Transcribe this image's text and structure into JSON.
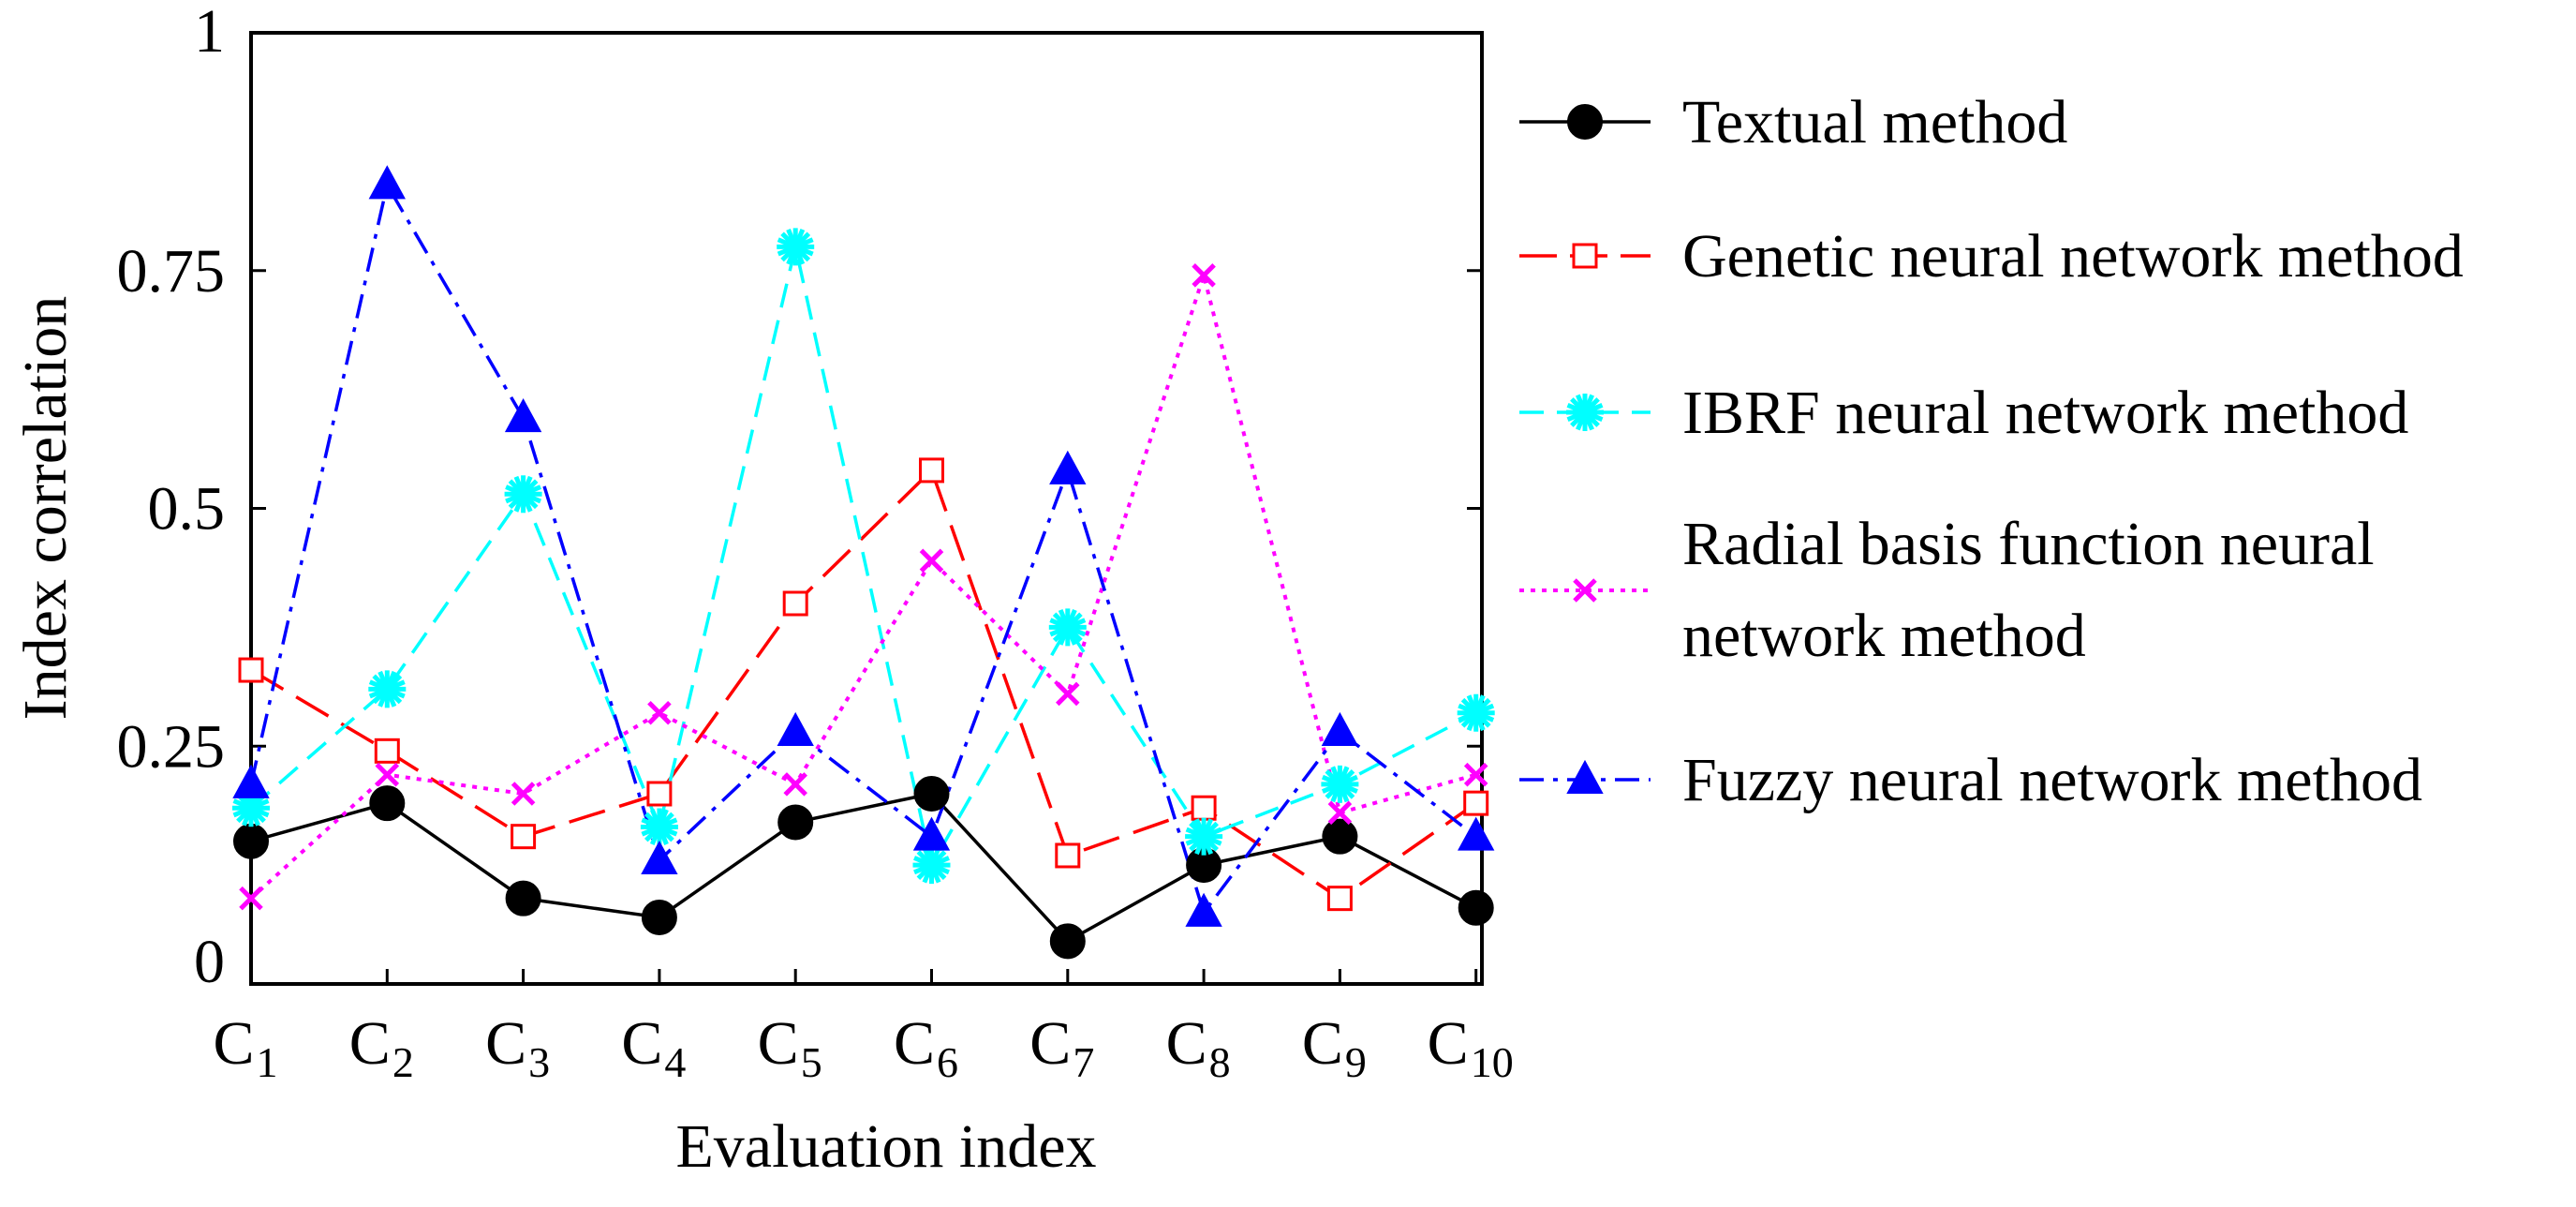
{
  "chart_data": {
    "type": "line",
    "title": "",
    "xlabel": "Evaluation index",
    "ylabel": "Index correlation",
    "ylim": [
      0,
      1
    ],
    "yticks": [
      "0",
      "0.25",
      "0.5",
      "0.75",
      "1"
    ],
    "categories": [
      {
        "base": "C",
        "sub": "1"
      },
      {
        "base": "C",
        "sub": "2"
      },
      {
        "base": "C",
        "sub": "3"
      },
      {
        "base": "C",
        "sub": "4"
      },
      {
        "base": "C",
        "sub": "5"
      },
      {
        "base": "C",
        "sub": "6"
      },
      {
        "base": "C",
        "sub": "7"
      },
      {
        "base": "C",
        "sub": "8"
      },
      {
        "base": "C",
        "sub": "9"
      },
      {
        "base": "C",
        "sub": "10"
      }
    ],
    "legend_position": "right",
    "series": [
      {
        "name": "Textual method",
        "color": "#000000",
        "dash": "solid",
        "marker": "filled-circle",
        "values": [
          0.15,
          0.19,
          0.09,
          0.07,
          0.17,
          0.2,
          0.045,
          0.125,
          0.155,
          0.08
        ]
      },
      {
        "name": "Genetic neural network method",
        "color": "#ff0000",
        "dash": "long-dash",
        "marker": "open-square",
        "values": [
          0.33,
          0.245,
          0.155,
          0.2,
          0.4,
          0.54,
          0.135,
          0.185,
          0.09,
          0.19
        ]
      },
      {
        "name": "IBRF neural network method",
        "color": "#00ffff",
        "dash": "dash",
        "marker": "asterisk",
        "values": [
          0.185,
          0.31,
          0.515,
          0.165,
          0.775,
          0.125,
          0.375,
          0.155,
          0.21,
          0.285
        ]
      },
      {
        "name": "Radial basis function neural network method",
        "color": "#ff00ff",
        "dash": "dot",
        "marker": "cross",
        "values": [
          0.09,
          0.22,
          0.2,
          0.285,
          0.21,
          0.445,
          0.305,
          0.745,
          0.18,
          0.22
        ]
      },
      {
        "name": "Fuzzy neural network method",
        "color": "#0000ff",
        "dash": "dash-dot",
        "marker": "filled-triangle",
        "values": [
          0.21,
          0.84,
          0.595,
          0.13,
          0.265,
          0.155,
          0.54,
          0.075,
          0.265,
          0.155
        ]
      }
    ],
    "legend_labels": [
      [
        "Textual method"
      ],
      [
        "Genetic neural network method"
      ],
      [
        "IBRF neural network method"
      ],
      [
        "Radial basis function neural",
        "network method"
      ],
      [
        "Fuzzy neural network method"
      ]
    ]
  }
}
